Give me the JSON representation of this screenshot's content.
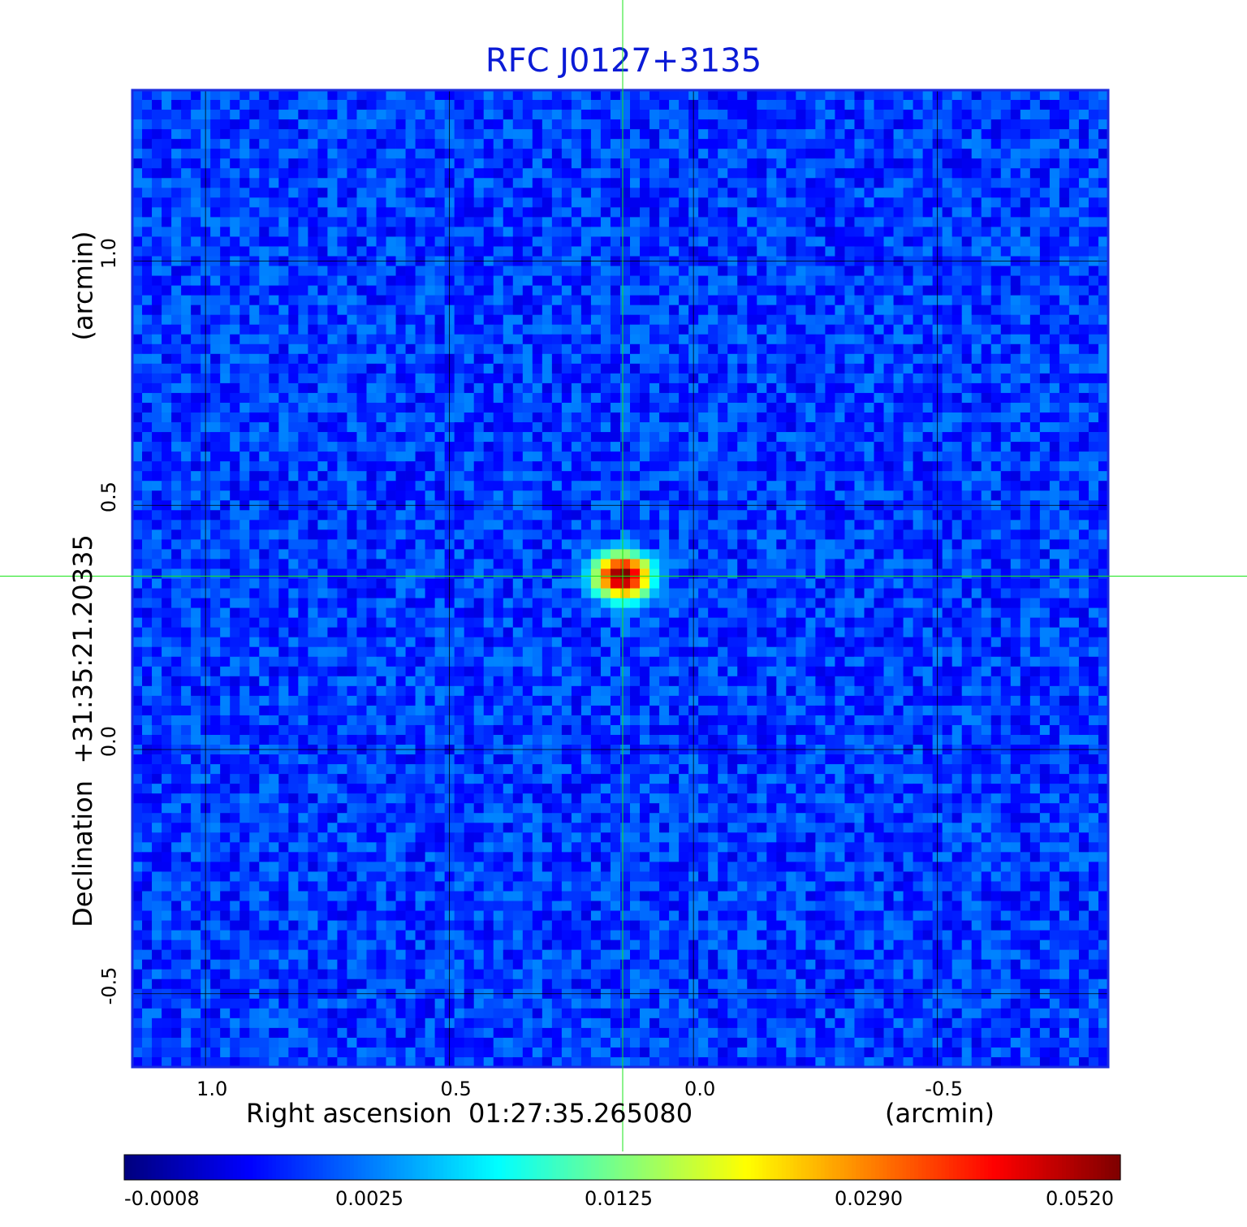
{
  "chart_data": {
    "type": "heatmap",
    "title": "RFC J0127+3135",
    "xlabel": "Right ascension  01:27:35.265080",
    "x_unit": "(arcmin)",
    "ylabel": "Declination  +31:35:21.20335",
    "y_unit": "(arcmin)",
    "x_ticks": [
      "1.0",
      "0.5",
      "0.0",
      "-0.5"
    ],
    "x_tick_values": [
      1.0,
      0.5,
      0.0,
      -0.5
    ],
    "y_ticks": [
      "1.0",
      "0.5",
      "0.0",
      "-0.5"
    ],
    "y_tick_values": [
      1.0,
      0.5,
      0.0,
      -0.5
    ],
    "xlim": [
      1.15,
      -0.85
    ],
    "ylim": [
      -0.65,
      1.35
    ],
    "grid": true,
    "crosshair": {
      "x": 0.145,
      "y": 0.355,
      "color": "#19e519"
    },
    "source": {
      "x": 0.145,
      "y": 0.355,
      "peak": 0.052
    },
    "background_level": 0.0016,
    "colormap": "jet",
    "colorbar": {
      "ticks": [
        "-0.0008",
        "0.0025",
        "0.0125",
        "0.0290",
        "0.0520"
      ],
      "values": [
        -0.0008,
        0.0025,
        0.0125,
        0.029,
        0.052
      ]
    }
  }
}
